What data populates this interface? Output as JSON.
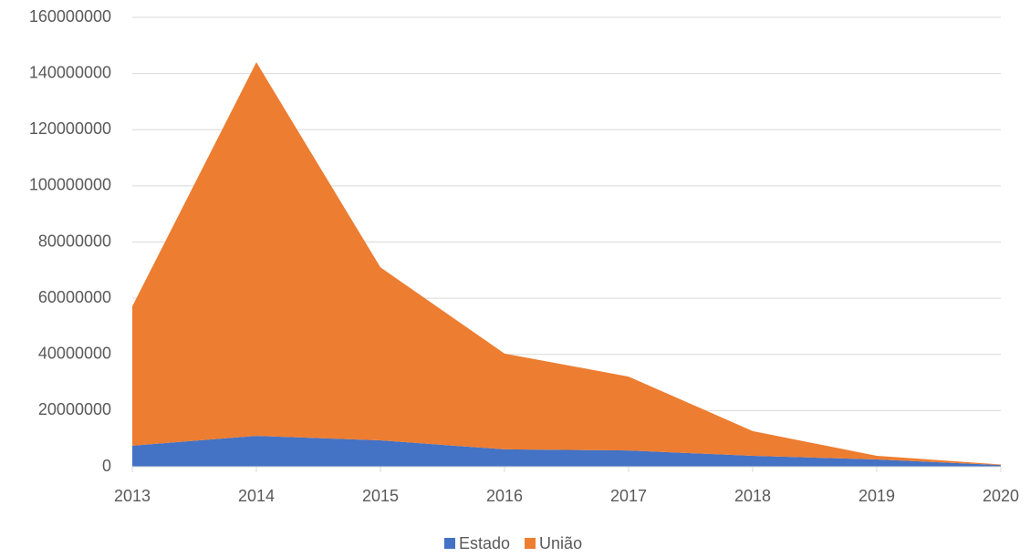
{
  "chart_data": {
    "type": "stacked_area",
    "categories": [
      "2013",
      "2014",
      "2015",
      "2016",
      "2017",
      "2018",
      "2019",
      "2020"
    ],
    "series": [
      {
        "name": "Estado",
        "color": "#4472c4",
        "values": [
          7500000,
          11000000,
          9400000,
          6200000,
          5800000,
          3900000,
          2600000,
          600000
        ]
      },
      {
        "name": "União",
        "color": "#ed7d31",
        "values": [
          49600000,
          133000000,
          61600000,
          34100000,
          26300000,
          8800000,
          1300000,
          200000
        ]
      }
    ],
    "ylim": [
      0,
      160000000
    ],
    "yticks": [
      0,
      20000000,
      40000000,
      60000000,
      80000000,
      100000000,
      120000000,
      140000000,
      160000000
    ],
    "grid": true,
    "legend": "bottom"
  }
}
